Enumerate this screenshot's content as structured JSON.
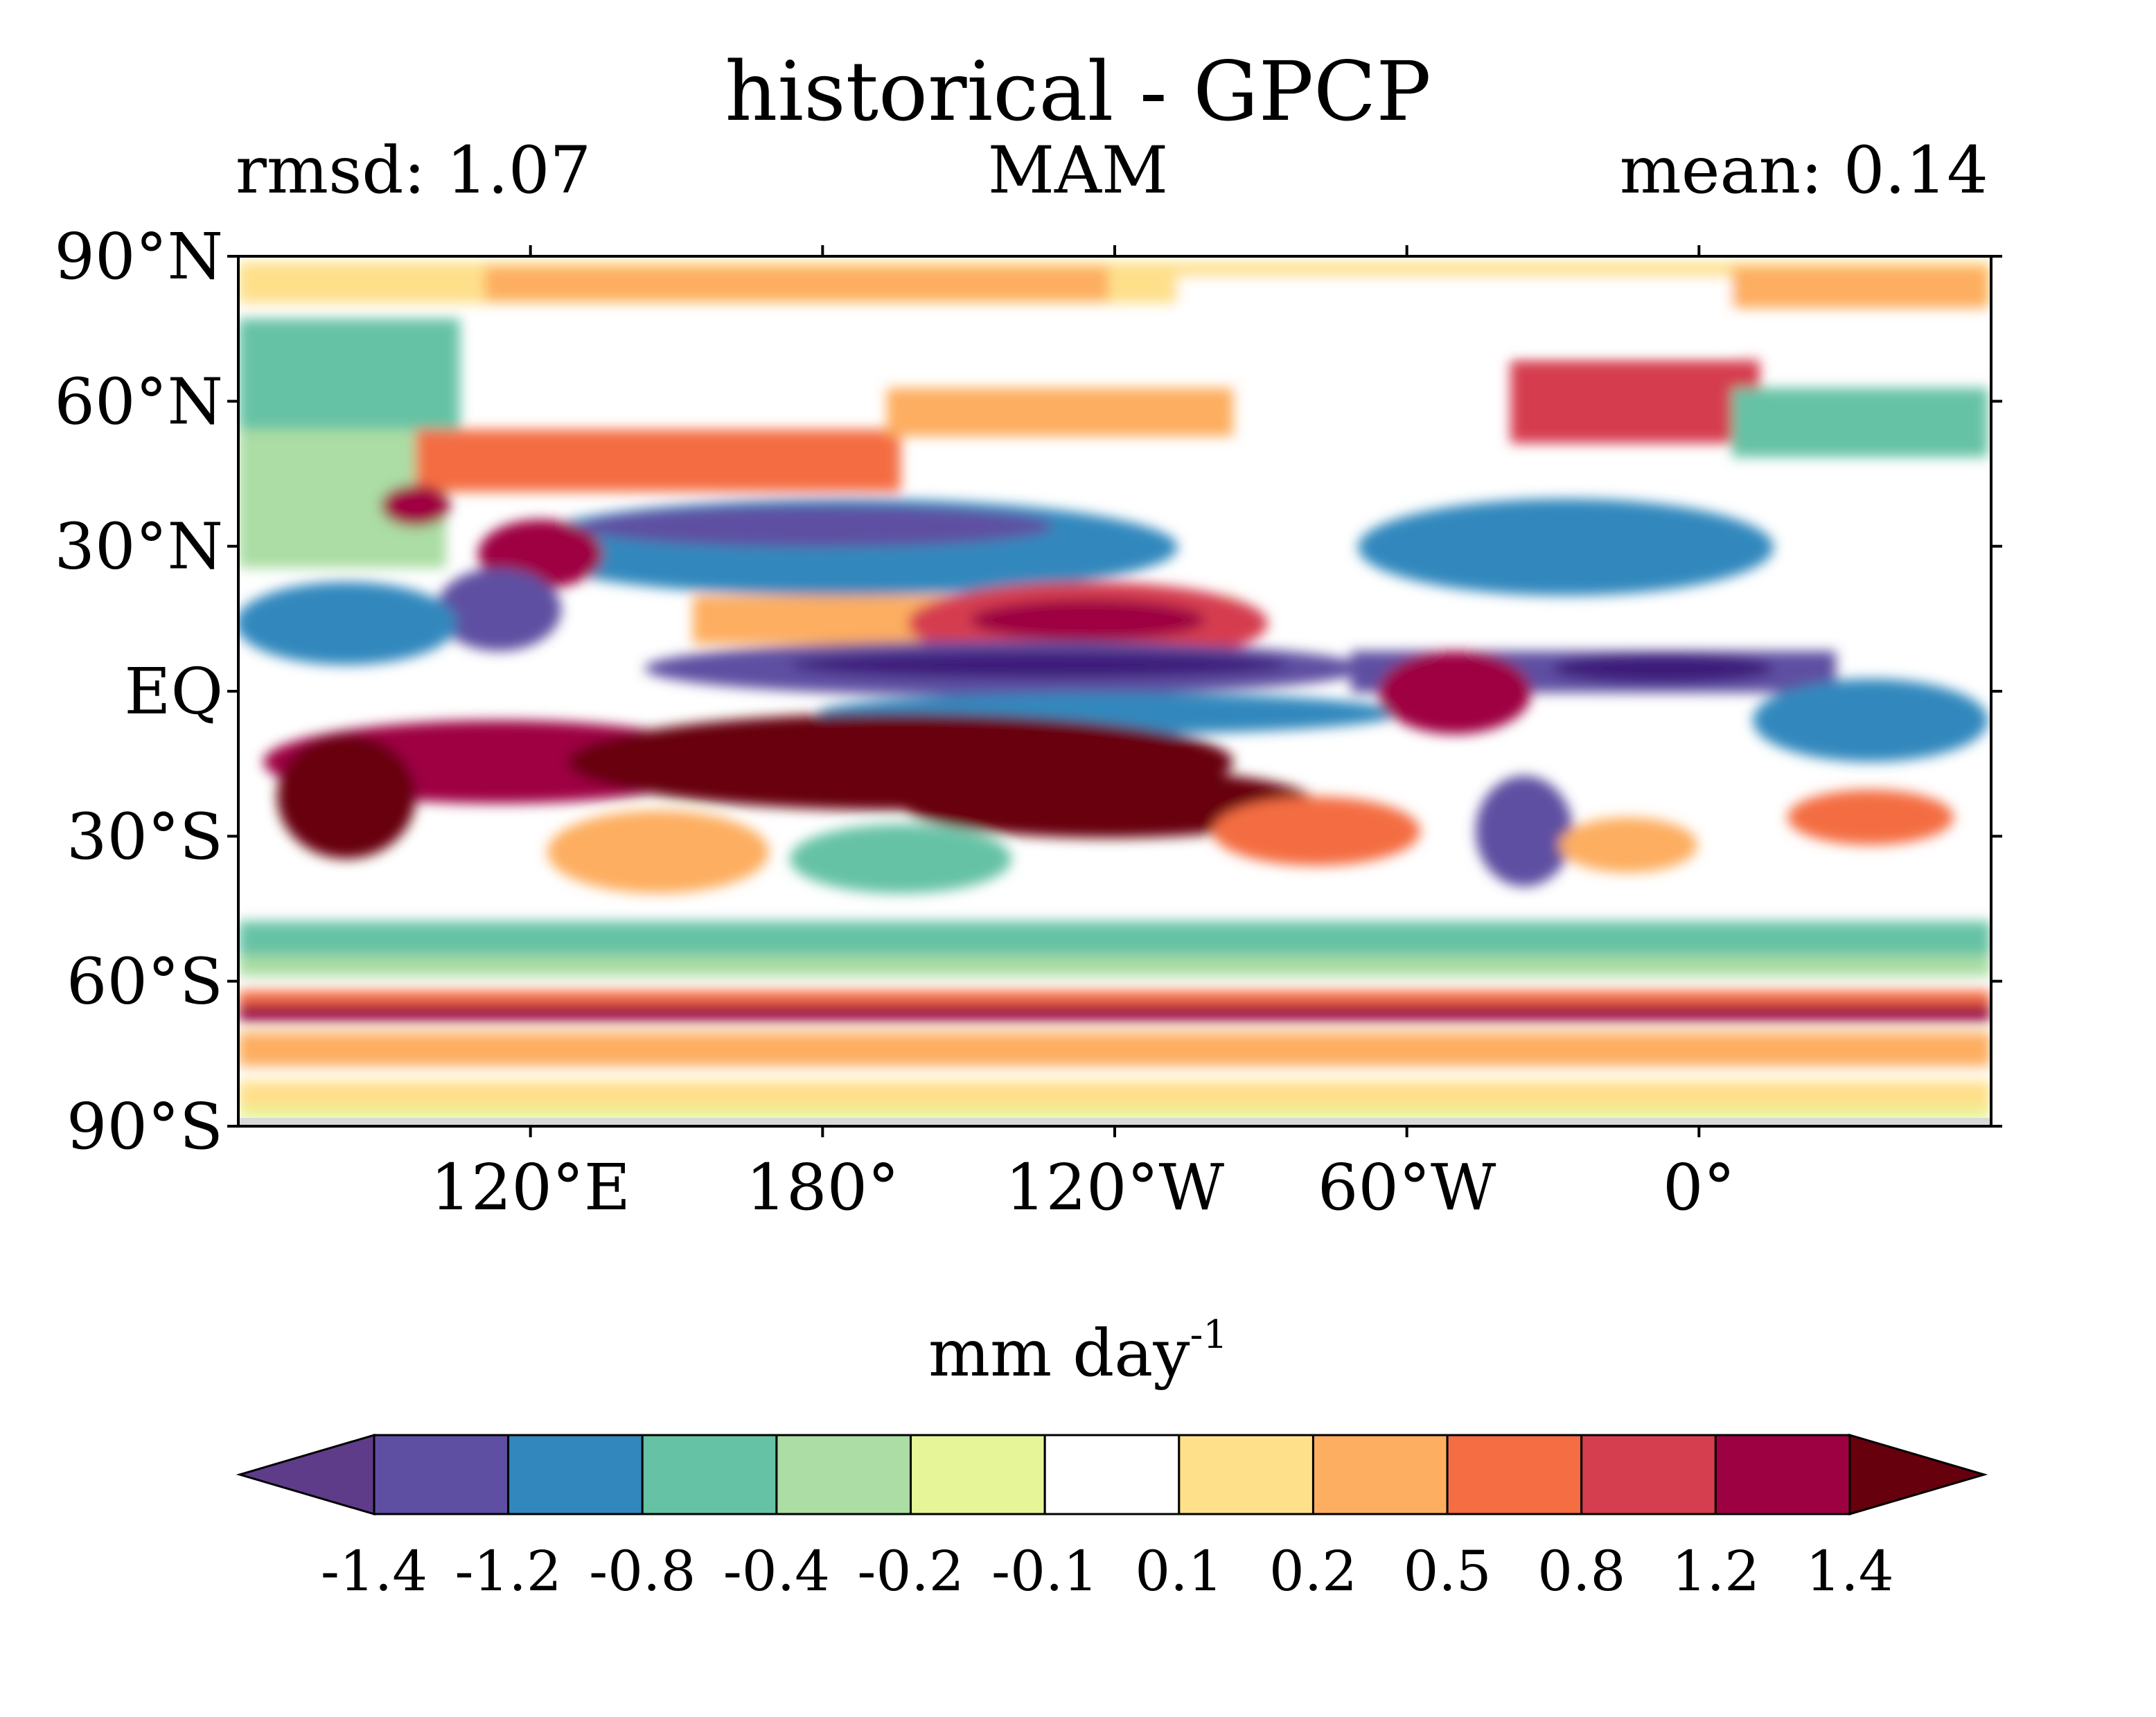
{
  "header": {
    "title": "historical - GPCP",
    "left_label": "rmsd: 1.07",
    "center_label": "MAM",
    "right_label": "mean: 0.14"
  },
  "map": {
    "lat_ticks": [
      "90°N",
      "60°N",
      "30°N",
      "EQ",
      "30°S",
      "60°S",
      "90°S"
    ],
    "lon_ticks": [
      "120°E",
      "180°",
      "120°W",
      "60°W",
      "0°"
    ],
    "palette": {
      "strong_neg": "#5e3c99",
      "neg": "#3288bd",
      "weak_neg": "#66c2a5",
      "neutral": "#ffffff",
      "weak_pos": "#fdae61",
      "pos": "#f46d43",
      "strong_pos": "#9e0142",
      "extreme_pos": "#67000d"
    }
  },
  "colorbar": {
    "units": "mm day",
    "units_exp": "-1",
    "colors": [
      "#5e3c89",
      "#5e4fa2",
      "#3288bd",
      "#66c2a5",
      "#abdda4",
      "#e6f598",
      "#ffffff",
      "#fee08b",
      "#fdae61",
      "#f46d43",
      "#d53e4f",
      "#9e0142",
      "#67000d"
    ],
    "ticks": [
      "-1.4",
      "-1.2",
      "-0.8",
      "-0.4",
      "-0.2",
      "-0.1",
      "0.1",
      "0.2",
      "0.5",
      "0.8",
      "1.2",
      "1.4"
    ]
  }
}
